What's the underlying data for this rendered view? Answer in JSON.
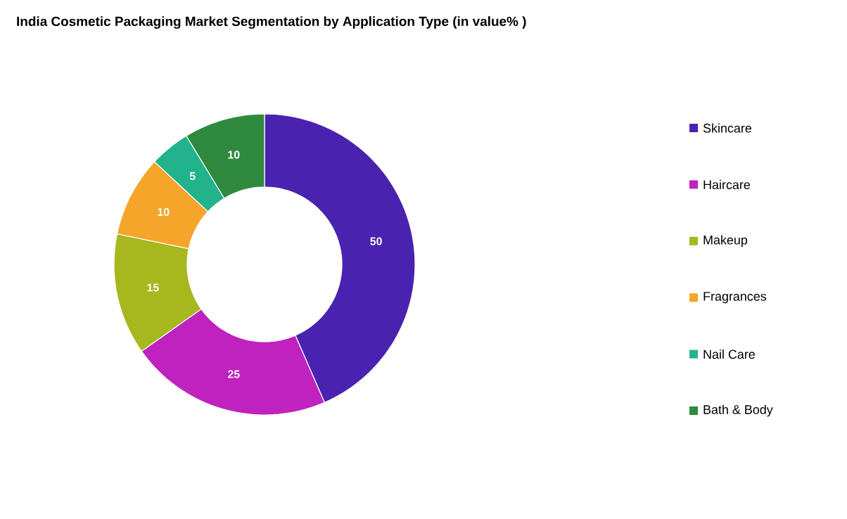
{
  "chart_data": {
    "type": "donut",
    "title": "India Cosmetic Packaging Market Segmentation by Application Type (in value% )",
    "categories": [
      "Skincare",
      "Haircare",
      "Makeup",
      "Fragrances",
      "Nail Care",
      "Bath & Body"
    ],
    "values": [
      50,
      25,
      15,
      10,
      5,
      10
    ],
    "colors": [
      "#4a22b0",
      "#c022c0",
      "#a6b81e",
      "#f5a52a",
      "#22b38c",
      "#2f8a3f"
    ],
    "data_labels": true,
    "legend": "right"
  }
}
